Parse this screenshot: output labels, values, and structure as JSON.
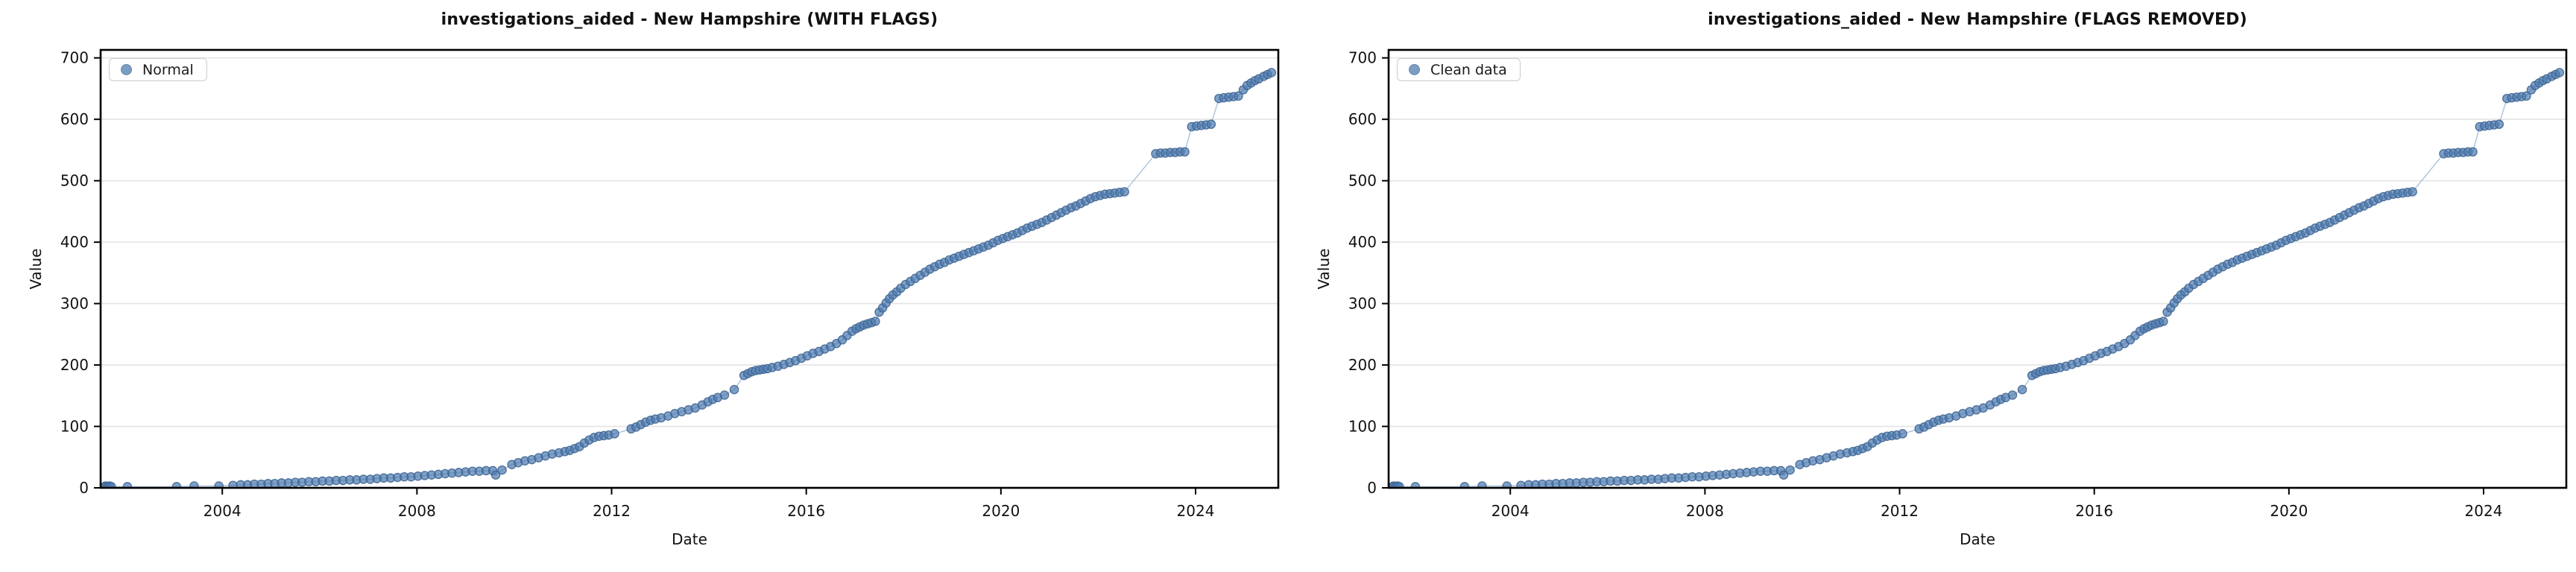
{
  "figure": {
    "background": "#ffffff"
  },
  "style": {
    "marker_fill": "#4f7cb0",
    "marker_edge": "#39618f",
    "marker_opacity": 0.72,
    "line_color": "#7fa1c9",
    "line_opacity": 0.65,
    "grid_color": "#e4e4e4",
    "spine_color": "#000000",
    "tick_label_color": "#111111"
  },
  "chart_data": [
    {
      "type": "scatter",
      "title": "investigations_aided - New Hampshire (WITH FLAGS)",
      "xlabel": "Date",
      "ylabel": "Value",
      "legend_position": "upper-left",
      "grid": "horizontal",
      "xlim": [
        2001.5,
        2025.7
      ],
      "ylim": [
        0,
        713
      ],
      "x_ticks": [
        2004,
        2008,
        2012,
        2016,
        2020,
        2024
      ],
      "y_ticks": [
        0,
        100,
        200,
        300,
        400,
        500,
        600,
        700
      ],
      "series": [
        {
          "name": "Normal",
          "points": [
            [
              2001.56,
              1
            ],
            [
              2001.6,
              3
            ],
            [
              2001.64,
              2
            ],
            [
              2001.68,
              3
            ],
            [
              2001.72,
              2
            ],
            [
              2002.05,
              2
            ],
            [
              2003.06,
              2
            ],
            [
              2003.42,
              3
            ],
            [
              2003.93,
              3
            ],
            [
              2004.22,
              4
            ],
            [
              2004.38,
              5
            ],
            [
              2004.52,
              5
            ],
            [
              2004.66,
              6
            ],
            [
              2004.8,
              6
            ],
            [
              2004.94,
              7
            ],
            [
              2005.08,
              7
            ],
            [
              2005.22,
              8
            ],
            [
              2005.36,
              8
            ],
            [
              2005.5,
              9
            ],
            [
              2005.64,
              9
            ],
            [
              2005.78,
              10
            ],
            [
              2005.92,
              10
            ],
            [
              2006.06,
              11
            ],
            [
              2006.2,
              11
            ],
            [
              2006.34,
              12
            ],
            [
              2006.48,
              12
            ],
            [
              2006.62,
              13
            ],
            [
              2006.76,
              13
            ],
            [
              2006.9,
              14
            ],
            [
              2007.04,
              14
            ],
            [
              2007.18,
              15
            ],
            [
              2007.32,
              16
            ],
            [
              2007.46,
              16
            ],
            [
              2007.6,
              17
            ],
            [
              2007.74,
              18
            ],
            [
              2007.88,
              18
            ],
            [
              2008.02,
              19
            ],
            [
              2008.16,
              20
            ],
            [
              2008.3,
              21
            ],
            [
              2008.44,
              22
            ],
            [
              2008.58,
              23
            ],
            [
              2008.72,
              24
            ],
            [
              2008.86,
              25
            ],
            [
              2009.0,
              26
            ],
            [
              2009.14,
              27
            ],
            [
              2009.28,
              27
            ],
            [
              2009.42,
              28
            ],
            [
              2009.56,
              28
            ],
            [
              2009.62,
              21
            ],
            [
              2009.75,
              29
            ],
            [
              2009.95,
              38
            ],
            [
              2010.08,
              41
            ],
            [
              2010.22,
              44
            ],
            [
              2010.36,
              46
            ],
            [
              2010.5,
              49
            ],
            [
              2010.64,
              52
            ],
            [
              2010.78,
              55
            ],
            [
              2010.92,
              57
            ],
            [
              2011.04,
              59
            ],
            [
              2011.14,
              61
            ],
            [
              2011.24,
              64
            ],
            [
              2011.34,
              67
            ],
            [
              2011.44,
              73
            ],
            [
              2011.54,
              78
            ],
            [
              2011.64,
              82
            ],
            [
              2011.74,
              84
            ],
            [
              2011.84,
              85
            ],
            [
              2011.94,
              86
            ],
            [
              2012.06,
              88
            ],
            [
              2012.4,
              96
            ],
            [
              2012.5,
              99
            ],
            [
              2012.6,
              103
            ],
            [
              2012.7,
              107
            ],
            [
              2012.8,
              110
            ],
            [
              2012.9,
              112
            ],
            [
              2013.02,
              114
            ],
            [
              2013.16,
              117
            ],
            [
              2013.3,
              121
            ],
            [
              2013.44,
              124
            ],
            [
              2013.58,
              127
            ],
            [
              2013.72,
              130
            ],
            [
              2013.86,
              135
            ],
            [
              2013.98,
              140
            ],
            [
              2014.08,
              144
            ],
            [
              2014.18,
              147
            ],
            [
              2014.32,
              151
            ],
            [
              2014.52,
              160
            ],
            [
              2014.72,
              183
            ],
            [
              2014.8,
              186
            ],
            [
              2014.88,
              189
            ],
            [
              2014.96,
              191
            ],
            [
              2015.04,
              192
            ],
            [
              2015.12,
              193
            ],
            [
              2015.2,
              194
            ],
            [
              2015.3,
              196
            ],
            [
              2015.42,
              198
            ],
            [
              2015.54,
              201
            ],
            [
              2015.66,
              204
            ],
            [
              2015.78,
              207
            ],
            [
              2015.9,
              211
            ],
            [
              2016.02,
              215
            ],
            [
              2016.14,
              219
            ],
            [
              2016.26,
              222
            ],
            [
              2016.38,
              226
            ],
            [
              2016.5,
              230
            ],
            [
              2016.62,
              235
            ],
            [
              2016.74,
              241
            ],
            [
              2016.84,
              248
            ],
            [
              2016.94,
              255
            ],
            [
              2017.02,
              259
            ],
            [
              2017.1,
              262
            ],
            [
              2017.18,
              265
            ],
            [
              2017.26,
              267
            ],
            [
              2017.34,
              269
            ],
            [
              2017.42,
              271
            ],
            [
              2017.5,
              286
            ],
            [
              2017.57,
              293
            ],
            [
              2017.64,
              301
            ],
            [
              2017.71,
              308
            ],
            [
              2017.78,
              314
            ],
            [
              2017.86,
              319
            ],
            [
              2017.94,
              325
            ],
            [
              2018.04,
              331
            ],
            [
              2018.14,
              336
            ],
            [
              2018.24,
              341
            ],
            [
              2018.34,
              346
            ],
            [
              2018.44,
              351
            ],
            [
              2018.54,
              356
            ],
            [
              2018.64,
              360
            ],
            [
              2018.74,
              364
            ],
            [
              2018.84,
              367
            ],
            [
              2018.94,
              371
            ],
            [
              2019.04,
              374
            ],
            [
              2019.14,
              377
            ],
            [
              2019.24,
              380
            ],
            [
              2019.34,
              383
            ],
            [
              2019.44,
              386
            ],
            [
              2019.54,
              389
            ],
            [
              2019.64,
              392
            ],
            [
              2019.74,
              395
            ],
            [
              2019.84,
              399
            ],
            [
              2019.94,
              403
            ],
            [
              2020.04,
              406
            ],
            [
              2020.14,
              409
            ],
            [
              2020.24,
              412
            ],
            [
              2020.34,
              415
            ],
            [
              2020.44,
              419
            ],
            [
              2020.54,
              423
            ],
            [
              2020.64,
              426
            ],
            [
              2020.74,
              429
            ],
            [
              2020.84,
              432
            ],
            [
              2020.94,
              436
            ],
            [
              2021.04,
              440
            ],
            [
              2021.14,
              444
            ],
            [
              2021.24,
              448
            ],
            [
              2021.34,
              452
            ],
            [
              2021.44,
              456
            ],
            [
              2021.54,
              459
            ],
            [
              2021.64,
              463
            ],
            [
              2021.74,
              467
            ],
            [
              2021.84,
              471
            ],
            [
              2021.94,
              474
            ],
            [
              2022.04,
              476
            ],
            [
              2022.14,
              478
            ],
            [
              2022.24,
              479
            ],
            [
              2022.34,
              480
            ],
            [
              2022.44,
              481
            ],
            [
              2022.54,
              482
            ],
            [
              2023.18,
              544
            ],
            [
              2023.28,
              545
            ],
            [
              2023.38,
              545
            ],
            [
              2023.48,
              546
            ],
            [
              2023.58,
              546
            ],
            [
              2023.68,
              547
            ],
            [
              2023.78,
              547
            ],
            [
              2023.92,
              588
            ],
            [
              2024.02,
              589
            ],
            [
              2024.12,
              590
            ],
            [
              2024.22,
              591
            ],
            [
              2024.32,
              592
            ],
            [
              2024.48,
              634
            ],
            [
              2024.58,
              635
            ],
            [
              2024.68,
              636
            ],
            [
              2024.78,
              637
            ],
            [
              2024.88,
              638
            ],
            [
              2024.98,
              648
            ],
            [
              2025.06,
              655
            ],
            [
              2025.14,
              659
            ],
            [
              2025.22,
              663
            ],
            [
              2025.3,
              666
            ],
            [
              2025.4,
              670
            ],
            [
              2025.48,
              673
            ],
            [
              2025.56,
              676
            ]
          ]
        }
      ]
    },
    {
      "type": "scatter",
      "title": "investigations_aided - New Hampshire (FLAGS REMOVED)",
      "xlabel": "Date",
      "ylabel": "Value",
      "legend_position": "upper-left",
      "grid": "horizontal",
      "xlim": [
        2001.5,
        2025.7
      ],
      "ylim": [
        0,
        713
      ],
      "x_ticks": [
        2004,
        2008,
        2012,
        2016,
        2020,
        2024
      ],
      "y_ticks": [
        0,
        100,
        200,
        300,
        400,
        500,
        600,
        700
      ],
      "series": [
        {
          "name": "Clean data",
          "points": "same_as_chart_0"
        }
      ]
    }
  ]
}
